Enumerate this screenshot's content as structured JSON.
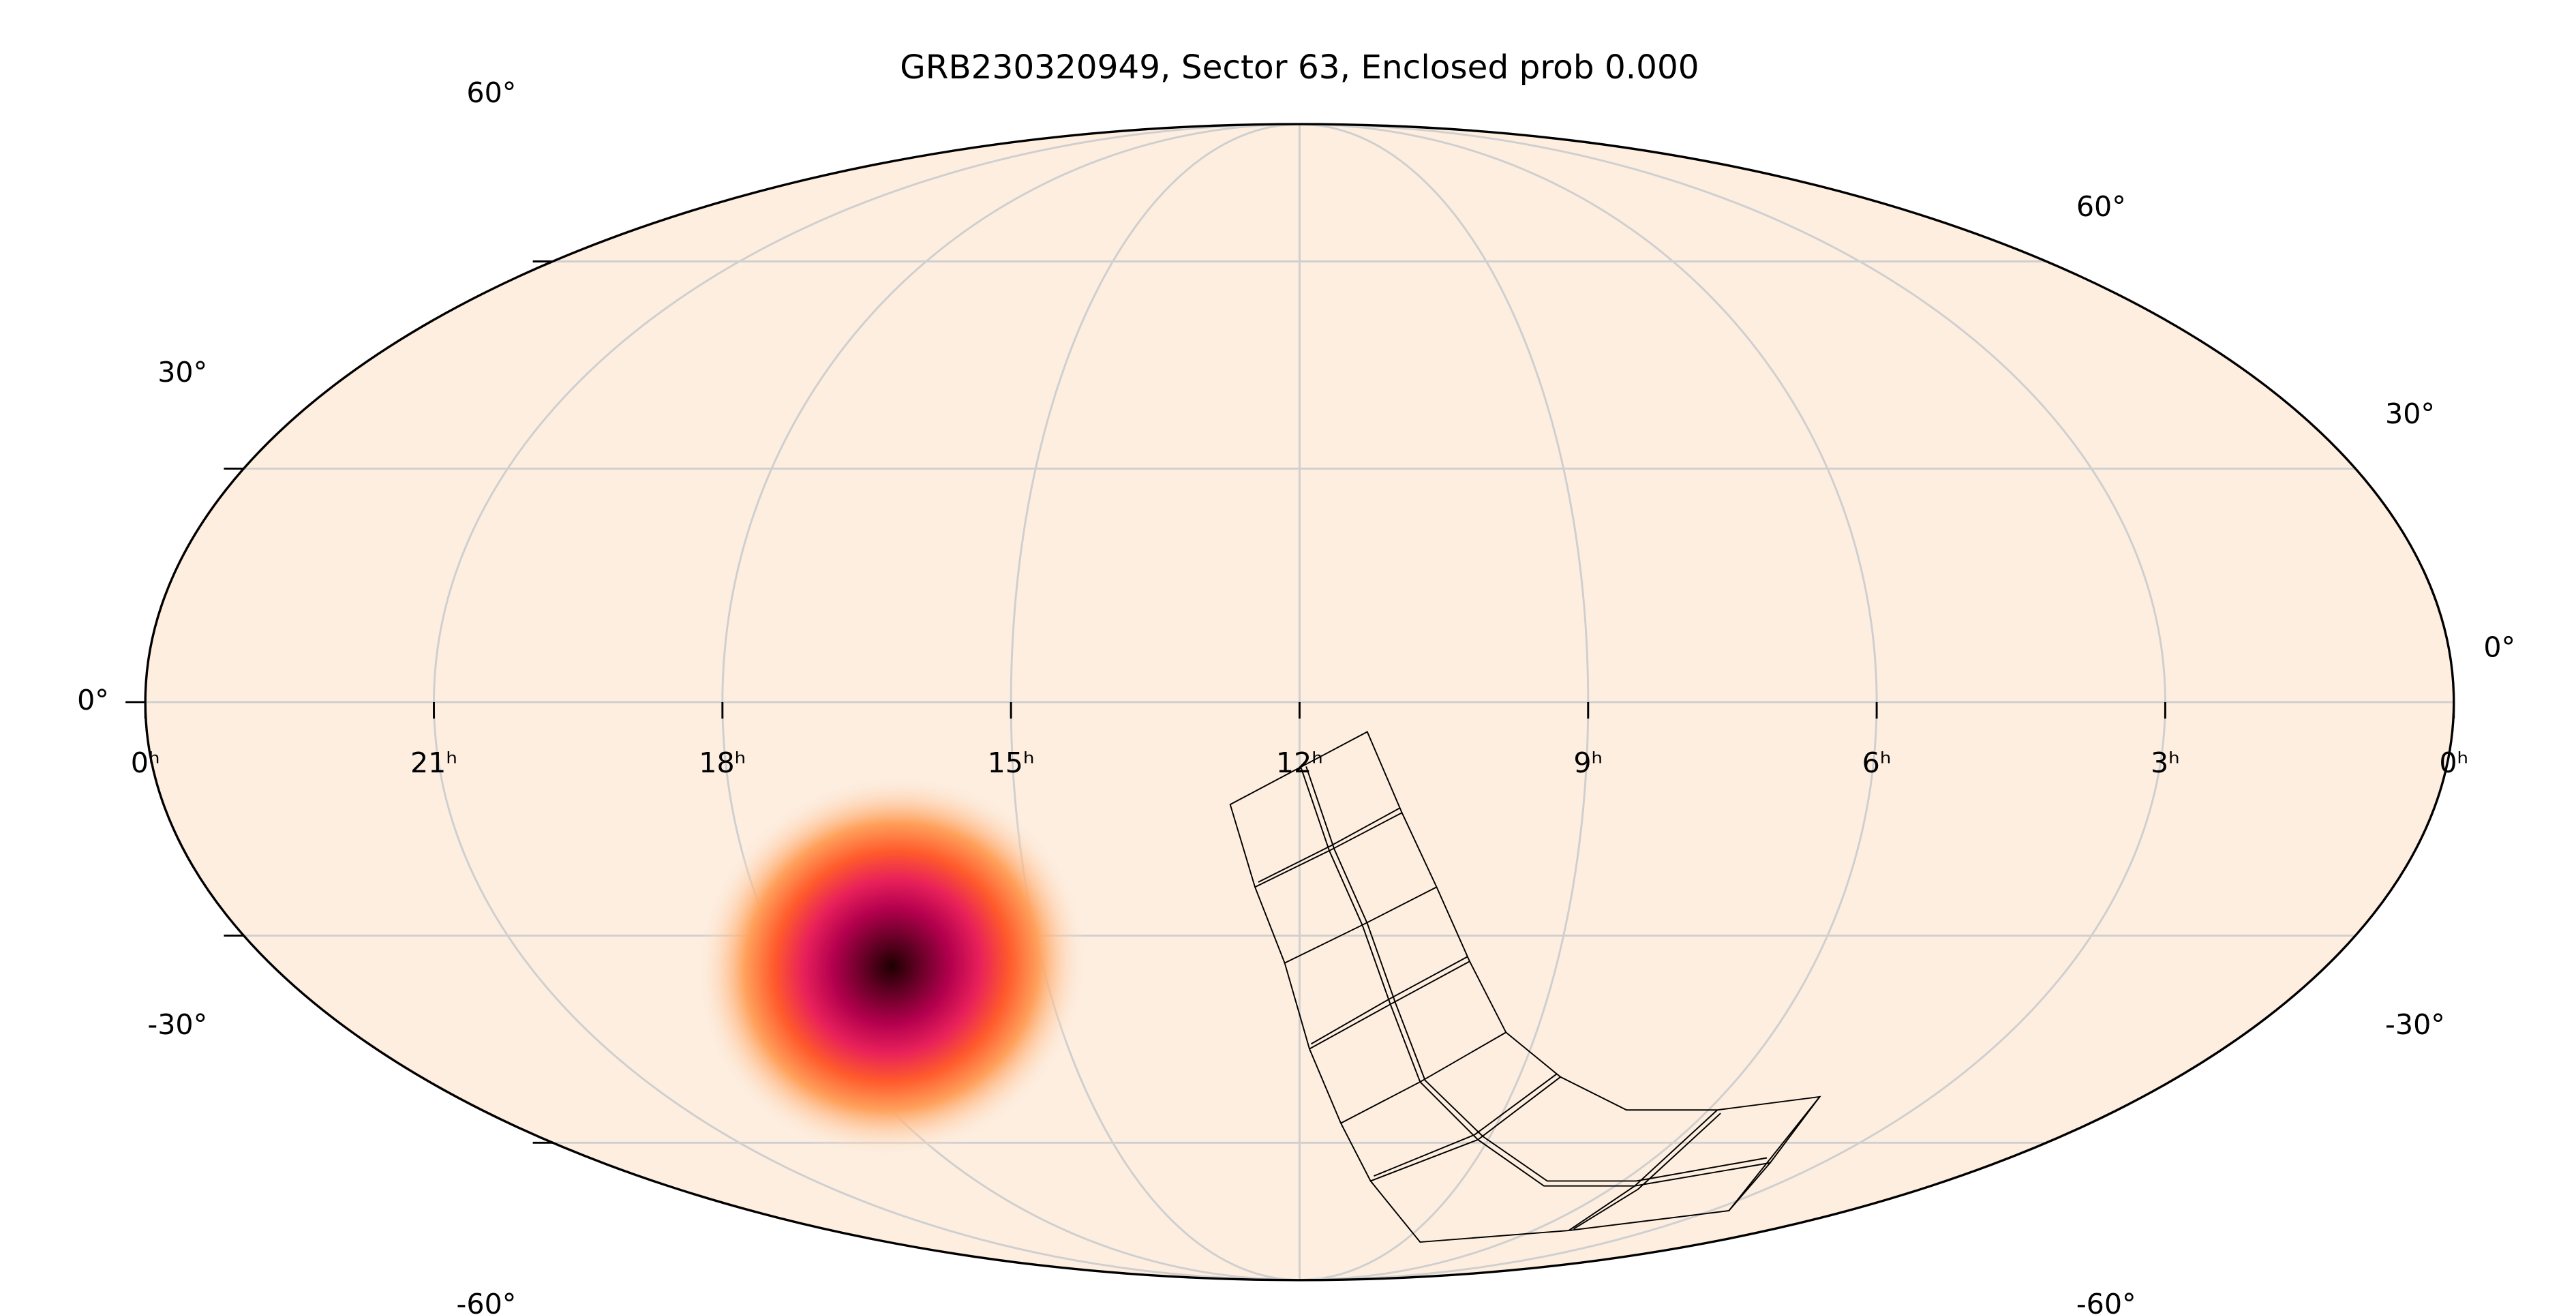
{
  "chart_data": {
    "type": "mollweide",
    "title": "GRB230320949, Sector 63, Enclosed prob 0.000",
    "xlim": [
      24,
      0
    ],
    "xticks": [
      {
        "value": 24,
        "label": "0ʰ"
      },
      {
        "value": 21,
        "label": "21ʰ"
      },
      {
        "value": 18,
        "label": "18ʰ"
      },
      {
        "value": 15,
        "label": "15ʰ"
      },
      {
        "value": 12,
        "label": "12ʰ"
      },
      {
        "value": 9,
        "label": "9ʰ"
      },
      {
        "value": 6,
        "label": "6ʰ"
      },
      {
        "value": 3,
        "label": "3ʰ"
      },
      {
        "value": 0,
        "label": "0ʰ"
      }
    ],
    "ylim": [
      -90,
      90
    ],
    "yticks": [
      {
        "value": 60,
        "label": "60°"
      },
      {
        "value": 30,
        "label": "30°"
      },
      {
        "value": 0,
        "label": "0°"
      },
      {
        "value": -30,
        "label": "-30°"
      },
      {
        "value": -60,
        "label": "-60°"
      }
    ],
    "grid": true
  }
}
